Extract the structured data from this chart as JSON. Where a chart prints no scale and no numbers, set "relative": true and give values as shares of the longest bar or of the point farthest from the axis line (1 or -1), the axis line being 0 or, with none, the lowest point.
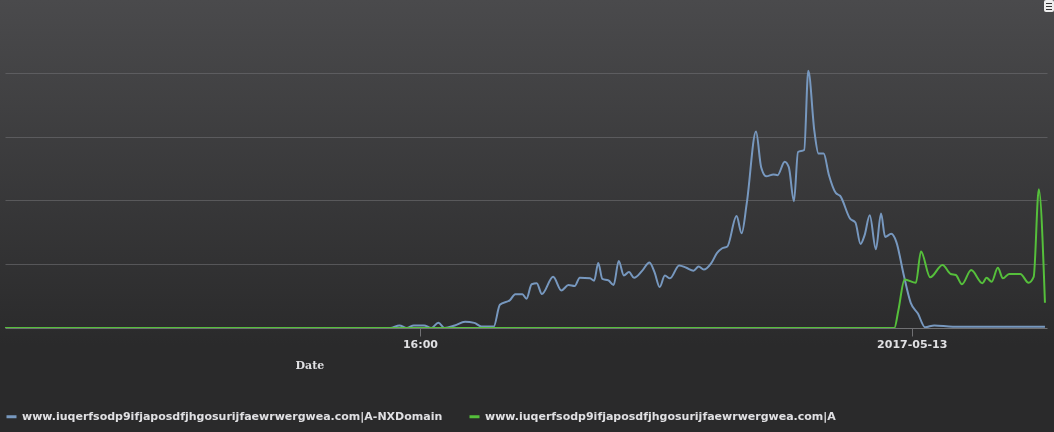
{
  "chart_data": {
    "type": "line",
    "relative": true,
    "xlabel": "Date",
    "xlim": [
      "2017-05-12T09:15",
      "2017-05-13T02:12"
    ],
    "xticks": [
      {
        "value": "2017-05-12T16:00",
        "label": "16:00"
      },
      {
        "value": "2017-05-13T00:00",
        "label": "2017-05-13"
      }
    ],
    "grid": "y",
    "legend": "bottom",
    "series": [
      {
        "name": "www.iuqerfsodp9ifjaposdfjhgosurijfaewrwergwea.com|A-NXDomain",
        "color": "#7798bf",
        "x": [
          "2017-05-12T09:15",
          "2017-05-12T15:29",
          "2017-05-12T15:31",
          "2017-05-12T15:40",
          "2017-05-12T15:47",
          "2017-05-12T15:54",
          "2017-05-12T16:04",
          "2017-05-12T16:11",
          "2017-05-12T16:18",
          "2017-05-12T16:24",
          "2017-05-12T16:34",
          "2017-05-12T16:44",
          "2017-05-12T16:53",
          "2017-05-12T17:00",
          "2017-05-12T17:12",
          "2017-05-12T17:18",
          "2017-05-12T17:28",
          "2017-05-12T17:33",
          "2017-05-12T17:40",
          "2017-05-12T17:44",
          "2017-05-12T17:49",
          "2017-05-12T17:54",
          "2017-05-12T17:59",
          "2017-05-12T18:10",
          "2017-05-12T18:18",
          "2017-05-12T18:25",
          "2017-05-12T18:31",
          "2017-05-12T18:36",
          "2017-05-12T18:46",
          "2017-05-12T18:50",
          "2017-05-12T18:54",
          "2017-05-12T18:58",
          "2017-05-12T19:04",
          "2017-05-12T19:09",
          "2017-05-12T19:14",
          "2017-05-12T19:19",
          "2017-05-12T19:24",
          "2017-05-12T19:29",
          "2017-05-12T19:37",
          "2017-05-12T19:44",
          "2017-05-12T19:49",
          "2017-05-12T19:54",
          "2017-05-12T19:59",
          "2017-05-12T20:04",
          "2017-05-12T20:13",
          "2017-05-12T20:20",
          "2017-05-12T20:27",
          "2017-05-12T20:32",
          "2017-05-12T20:37",
          "2017-05-12T20:44",
          "2017-05-12T20:50",
          "2017-05-12T20:55",
          "2017-05-12T21:00",
          "2017-05-12T21:09",
          "2017-05-12T21:14",
          "2017-05-12T21:19",
          "2017-05-12T21:28",
          "2017-05-12T21:33",
          "2017-05-12T21:38",
          "2017-05-12T21:45",
          "2017-05-12T21:49",
          "2017-05-12T21:56",
          "2017-05-12T22:00",
          "2017-05-12T22:05",
          "2017-05-12T22:09",
          "2017-05-12T22:15",
          "2017-05-12T22:19",
          "2017-05-12T22:25",
          "2017-05-12T22:29",
          "2017-05-12T22:34",
          "2017-05-12T22:39",
          "2017-05-12T22:46",
          "2017-05-12T22:50",
          "2017-05-12T23:00",
          "2017-05-12T23:05",
          "2017-05-12T23:10",
          "2017-05-12T23:14",
          "2017-05-12T23:19",
          "2017-05-12T23:25",
          "2017-05-12T23:30",
          "2017-05-12T23:34",
          "2017-05-12T23:40",
          "2017-05-12T23:45",
          "2017-05-12T23:52",
          "2017-05-12T23:59",
          "2017-05-13T00:06",
          "2017-05-13T00:13",
          "2017-05-13T00:22",
          "2017-05-13T00:40",
          "2017-05-13T01:00",
          "2017-05-13T01:30",
          "2017-05-13T02:10"
        ],
        "values": [
          0,
          0,
          0,
          0.01,
          0,
          0.01,
          0.01,
          0,
          0.02,
          0,
          0.01,
          0.024,
          0.02,
          0.006,
          0.006,
          0.09,
          0.109,
          0.131,
          0.131,
          0.114,
          0.17,
          0.174,
          0.132,
          0.199,
          0.146,
          0.167,
          0.163,
          0.195,
          0.193,
          0.184,
          0.253,
          0.191,
          0.185,
          0.167,
          0.26,
          0.204,
          0.218,
          0.195,
          0.223,
          0.255,
          0.216,
          0.159,
          0.204,
          0.193,
          0.243,
          0.234,
          0.223,
          0.239,
          0.227,
          0.25,
          0.292,
          0.31,
          0.317,
          0.435,
          0.368,
          0.486,
          0.764,
          0.625,
          0.59,
          0.597,
          0.594,
          0.646,
          0.625,
          0.493,
          0.684,
          0.692,
          1,
          0.764,
          0.678,
          0.678,
          0.597,
          0.524,
          0.514,
          0.424,
          0.41,
          0.327,
          0.361,
          0.438,
          0.306,
          0.445,
          0.354,
          0.366,
          0.334,
          0.209,
          0.098,
          0.056,
          0.003,
          0.01,
          0.005,
          0.005,
          0.005,
          0.005
        ]
      },
      {
        "name": "www.iuqerfsodp9ifjaposdfjhgosurijfaewrwergwea.com|A",
        "color": "#55bf3b",
        "x": [
          "2017-05-12T09:15",
          "2017-05-12T23:43",
          "2017-05-12T23:47",
          "2017-05-12T23:53",
          "2017-05-13T00:04",
          "2017-05-13T00:09",
          "2017-05-13T00:18",
          "2017-05-13T00:30",
          "2017-05-13T00:38",
          "2017-05-13T00:43",
          "2017-05-13T00:49",
          "2017-05-13T00:58",
          "2017-05-13T01:09",
          "2017-05-13T01:13",
          "2017-05-13T01:18",
          "2017-05-13T01:24",
          "2017-05-13T01:29",
          "2017-05-13T01:35",
          "2017-05-13T01:46",
          "2017-05-13T01:54",
          "2017-05-13T01:59",
          "2017-05-13T02:04",
          "2017-05-13T02:10"
        ],
        "values": [
          0,
          0,
          0.07,
          0.189,
          0.176,
          0.297,
          0.197,
          0.245,
          0.21,
          0.206,
          0.17,
          0.225,
          0.174,
          0.195,
          0.18,
          0.234,
          0.193,
          0.21,
          0.21,
          0.176,
          0.199,
          0.539,
          0.098
        ]
      }
    ]
  }
}
